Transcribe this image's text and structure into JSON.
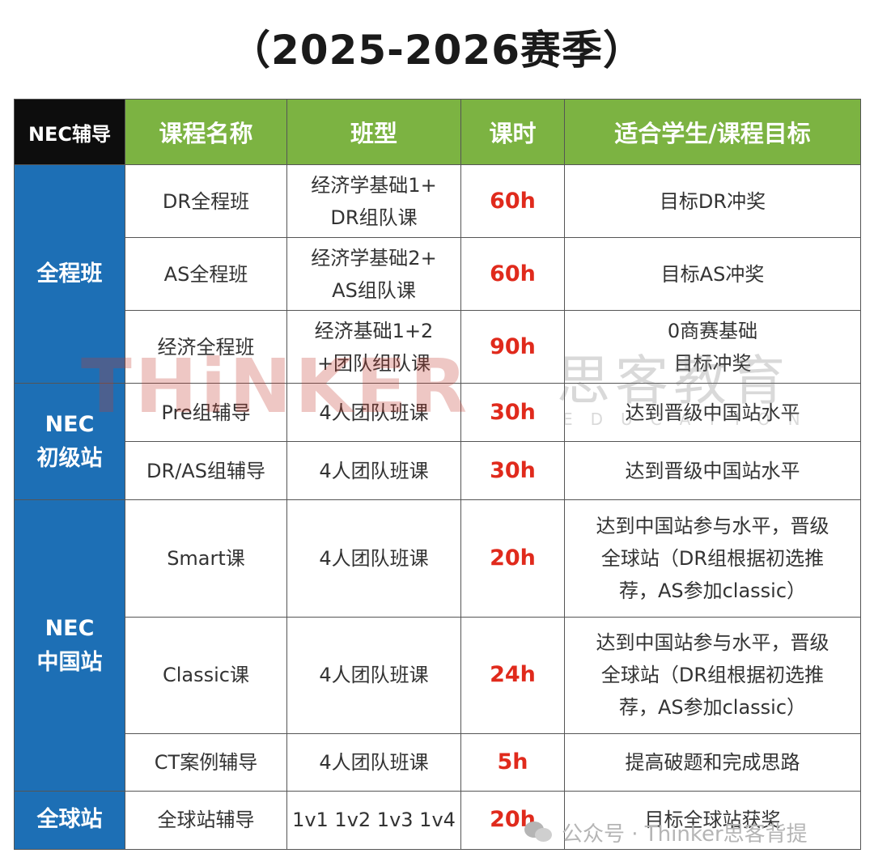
{
  "title": "（2025-2026赛季）",
  "table": {
    "headers": [
      "NEC辅导",
      "课程名称",
      "班型",
      "课时",
      "适合学生/课程目标"
    ],
    "groups": [
      "全程班",
      "NEC\n初级站",
      "NEC\n中国站",
      "全球站"
    ],
    "rows": [
      {
        "course": "DR全程班",
        "class_type": "经济学基础1+\nDR组队课",
        "hours": "60h",
        "target": "目标DR冲奖"
      },
      {
        "course": "AS全程班",
        "class_type": "经济学基础2+\nAS组队课",
        "hours": "60h",
        "target": "目标AS冲奖"
      },
      {
        "course": "经济全程班",
        "class_type": "经济基础1+2\n+团队组队课",
        "hours": "90h",
        "target": "0商赛基础\n目标冲奖"
      },
      {
        "course": "Pre组辅导",
        "class_type": "4人团队班课",
        "hours": "30h",
        "target": "达到晋级中国站水平"
      },
      {
        "course": "DR/AS组辅导",
        "class_type": "4人团队班课",
        "hours": "30h",
        "target": "达到晋级中国站水平"
      },
      {
        "course": "Smart课",
        "class_type": "4人团队班课",
        "hours": "20h",
        "target": "达到中国站参与水平，晋级\n全球站（DR组根据初选推\n荐，AS参加classic）"
      },
      {
        "course": "Classic课",
        "class_type": "4人团队班课",
        "hours": "24h",
        "target": "达到中国站参与水平，晋级\n全球站（DR组根据初选推\n荐，AS参加classic）"
      },
      {
        "course": "CT案例辅导",
        "class_type": "4人团队班课",
        "hours": "5h",
        "target": "提高破题和完成思路"
      },
      {
        "course": "全球站辅导",
        "class_type": "1v1 1v2 1v3 1v4",
        "hours": "20h",
        "target": "目标全球站获奖"
      }
    ]
  },
  "watermark": {
    "latin": "THiNKER",
    "cn": "思客教育",
    "sub": "EDUCATION"
  },
  "footer_mark": "公众号 · Thinker思客背提",
  "colors": {
    "header_green": "#7cb342",
    "group_blue": "#1d6fb5",
    "hours_red": "#e02a1c",
    "corner_black": "#0d0d0d"
  },
  "icons": [
    "wechat-icon"
  ]
}
